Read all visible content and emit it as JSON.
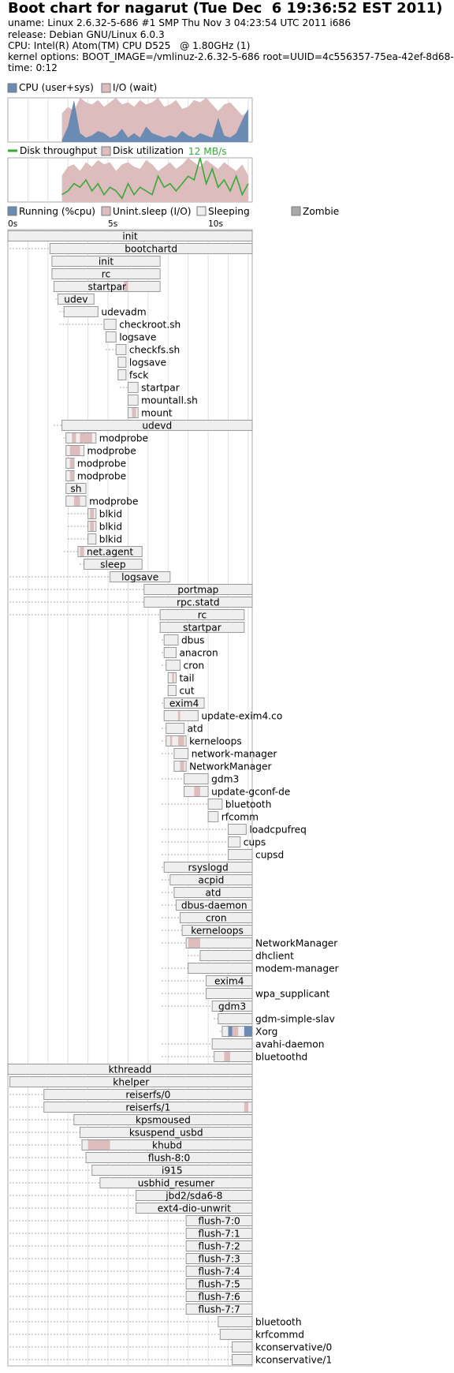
{
  "header": {
    "title": "Boot chart for nagarut (Tue Dec  6 19:36:52 EST 2011)",
    "uname": "uname: Linux 2.6.32-5-686 #1 SMP Thu Nov 3 04:23:54 UTC 2011 i686",
    "release": "release: Debian GNU/Linux 6.0.3",
    "cpu": "CPU: Intel(R) Atom(TM) CPU D525   @ 1.80GHz (1)",
    "kernel_options": "kernel options: BOOT_IMAGE=/vmlinuz-2.6.32-5-686 root=UUID=4c556357-75ea-42ef-8d68-",
    "time": "time: 0:12"
  },
  "colors": {
    "cpu": "#6b8bb3",
    "io": "#dcbcbc",
    "throughput": "#3aa83a",
    "running": "#6b8bb3",
    "uninterruptible": "#dcbcbc",
    "sleeping": "#efefef",
    "zombie": "#a8a8a8",
    "box_border": "#999999",
    "grid": "#e0e0e0"
  },
  "chart_data": [
    {
      "type": "area",
      "legend": [
        "CPU (user+sys)",
        "I/O (wait)"
      ],
      "x": [
        2.7,
        3.0,
        3.3,
        3.6,
        3.9,
        4.2,
        4.5,
        4.8,
        5.1,
        5.4,
        5.7,
        6.0,
        6.3,
        6.6,
        6.9,
        7.2,
        7.5,
        7.8,
        8.1,
        8.4,
        8.7,
        9.0,
        9.3,
        9.6,
        9.9,
        10.2,
        10.5,
        10.8,
        11.1,
        11.4,
        11.7,
        12.0
      ],
      "series": [
        {
          "name": "CPU (user+sys)",
          "values": [
            5,
            35,
            95,
            20,
            10,
            15,
            25,
            20,
            10,
            15,
            30,
            10,
            20,
            10,
            35,
            20,
            15,
            10,
            15,
            10,
            25,
            15,
            10,
            20,
            15,
            10,
            55,
            15,
            10,
            20,
            50,
            75
          ]
        },
        {
          "name": "I/O (wait)",
          "values": [
            65,
            80,
            70,
            100,
            90,
            85,
            95,
            80,
            90,
            100,
            85,
            90,
            80,
            95,
            85,
            90,
            100,
            80,
            85,
            95,
            75,
            80,
            95,
            90,
            100,
            85,
            70,
            85,
            90,
            75,
            60,
            70
          ]
        }
      ],
      "xlim": [
        0,
        12.2
      ],
      "ylim": [
        0,
        100
      ]
    },
    {
      "type": "area",
      "legend": [
        "Disk throughput",
        "Disk utilization"
      ],
      "annotation": "12 MB/s",
      "x": [
        2.7,
        3.0,
        3.3,
        3.6,
        3.9,
        4.2,
        4.5,
        4.8,
        5.1,
        5.4,
        5.7,
        6.0,
        6.3,
        6.6,
        6.9,
        7.2,
        7.5,
        7.8,
        8.1,
        8.4,
        8.7,
        9.0,
        9.3,
        9.6,
        9.9,
        10.2,
        10.5,
        10.8,
        11.1,
        11.4,
        11.7,
        12.0
      ],
      "series": [
        {
          "name": "Disk utilization",
          "values": [
            60,
            80,
            85,
            70,
            90,
            80,
            95,
            85,
            90,
            70,
            85,
            90,
            80,
            75,
            95,
            85,
            70,
            80,
            90,
            75,
            85,
            100,
            90,
            80,
            95,
            85,
            75,
            90,
            80,
            70,
            85,
            60
          ]
        },
        {
          "name": "Disk throughput",
          "values": [
            2,
            3,
            5,
            4,
            6,
            3,
            5,
            2,
            4,
            3,
            1,
            5,
            2,
            4,
            3,
            2,
            7,
            4,
            5,
            3,
            5,
            7,
            6,
            12,
            5,
            9,
            4,
            6,
            3,
            7,
            2,
            5
          ]
        }
      ],
      "xlim": [
        0,
        12.2
      ],
      "ylim": [
        0,
        12
      ]
    },
    {
      "type": "timeline",
      "legend": [
        "Running (%cpu)",
        "Unint.sleep (I/O)",
        "Sleeping",
        "Zombie"
      ],
      "ticks": [
        "0s",
        "5s",
        "10s"
      ],
      "xlim": [
        0,
        12.2
      ],
      "processes": [
        {
          "name": "init",
          "start": 0.0,
          "end": 12.2,
          "depth": 0
        },
        {
          "name": "bootchartd",
          "start": 2.1,
          "end": 12.2,
          "depth": 1
        },
        {
          "name": "init",
          "start": 2.2,
          "end": 7.6,
          "depth": 2
        },
        {
          "name": "rc",
          "start": 2.2,
          "end": 7.6,
          "depth": 3
        },
        {
          "name": "startpar",
          "start": 2.3,
          "end": 7.6,
          "depth": 4,
          "io": [
            [
              5.8,
              6.0
            ]
          ]
        },
        {
          "name": "udev",
          "start": 2.5,
          "end": 4.3,
          "depth": 5
        },
        {
          "name": "udevadm",
          "start": 2.8,
          "end": 4.5,
          "depth": 6
        },
        {
          "name": "checkroot.sh",
          "start": 4.8,
          "end": 5.4,
          "depth": 6
        },
        {
          "name": "logsave",
          "start": 4.9,
          "end": 5.4,
          "depth": 7
        },
        {
          "name": "checkfs.sh",
          "start": 5.4,
          "end": 5.9,
          "depth": 7
        },
        {
          "name": "logsave",
          "start": 5.5,
          "end": 5.9,
          "depth": 8
        },
        {
          "name": "fsck",
          "start": 5.5,
          "end": 5.9,
          "depth": 9
        },
        {
          "name": "startpar",
          "start": 6.0,
          "end": 6.5,
          "depth": 9
        },
        {
          "name": "mountall.sh",
          "start": 6.0,
          "end": 6.5,
          "depth": 10
        },
        {
          "name": "mount",
          "start": 6.0,
          "end": 6.5,
          "depth": 11,
          "io": [
            [
              6.2,
              6.4
            ]
          ]
        },
        {
          "name": "udevd",
          "start": 2.7,
          "end": 12.2,
          "depth": 3
        },
        {
          "name": "modprobe",
          "start": 2.9,
          "end": 4.4,
          "depth": 4,
          "io": [
            [
              3.2,
              3.4
            ],
            [
              3.6,
              4.2
            ]
          ]
        },
        {
          "name": "modprobe",
          "start": 2.9,
          "end": 3.8,
          "depth": 5,
          "io": [
            [
              3.1,
              3.6
            ]
          ]
        },
        {
          "name": "modprobe",
          "start": 2.9,
          "end": 3.3,
          "depth": 5,
          "io": [
            [
              3.1,
              3.3
            ]
          ]
        },
        {
          "name": "modprobe",
          "start": 2.9,
          "end": 3.3,
          "depth": 5,
          "io": [
            [
              3.1,
              3.3
            ]
          ]
        },
        {
          "name": "sh",
          "start": 2.9,
          "end": 3.9,
          "depth": 5
        },
        {
          "name": "modprobe",
          "start": 2.9,
          "end": 3.9,
          "depth": 5,
          "io": [
            [
              3.3,
              3.6
            ]
          ]
        },
        {
          "name": "blkid",
          "start": 4.0,
          "end": 4.4,
          "depth": 6,
          "io": [
            [
              4.1,
              4.3
            ]
          ]
        },
        {
          "name": "blkid",
          "start": 4.0,
          "end": 4.4,
          "depth": 6,
          "io": [
            [
              4.1,
              4.3
            ]
          ]
        },
        {
          "name": "blkid",
          "start": 4.0,
          "end": 4.4,
          "depth": 6
        },
        {
          "name": "net.agent",
          "start": 3.5,
          "end": 6.7,
          "depth": 4,
          "io": [
            [
              3.6,
              3.8
            ]
          ]
        },
        {
          "name": "sleep",
          "start": 3.8,
          "end": 6.7,
          "depth": 5
        },
        {
          "name": "logsave",
          "start": 5.1,
          "end": 8.1,
          "depth": 1
        },
        {
          "name": "portmap",
          "start": 6.8,
          "end": 12.2,
          "depth": 1
        },
        {
          "name": "rpc.statd",
          "start": 6.8,
          "end": 12.2,
          "depth": 1
        },
        {
          "name": "rc",
          "start": 7.6,
          "end": 11.8,
          "depth": 1
        },
        {
          "name": "startpar",
          "start": 7.6,
          "end": 11.8,
          "depth": 2
        },
        {
          "name": "dbus",
          "start": 7.8,
          "end": 8.5,
          "depth": 3
        },
        {
          "name": "anacron",
          "start": 7.8,
          "end": 8.4,
          "depth": 3
        },
        {
          "name": "cron",
          "start": 7.9,
          "end": 8.6,
          "depth": 3
        },
        {
          "name": "tail",
          "start": 8.0,
          "end": 8.4,
          "depth": 4,
          "io": [
            [
              8.2,
              8.3
            ]
          ]
        },
        {
          "name": "cut",
          "start": 8.0,
          "end": 8.4,
          "depth": 4
        },
        {
          "name": "exim4",
          "start": 7.8,
          "end": 9.8,
          "depth": 3
        },
        {
          "name": "update-exim4.co",
          "start": 7.8,
          "end": 9.5,
          "depth": 4,
          "io": [
            [
              8.5,
              8.6
            ]
          ]
        },
        {
          "name": "atd",
          "start": 7.9,
          "end": 8.8,
          "depth": 3
        },
        {
          "name": "kerneloops",
          "start": 7.9,
          "end": 8.9,
          "depth": 3,
          "io": [
            [
              8.1,
              8.2
            ],
            [
              8.5,
              8.8
            ]
          ]
        },
        {
          "name": "network-manager",
          "start": 8.3,
          "end": 9.0,
          "depth": 3
        },
        {
          "name": "NetworkManager",
          "start": 8.3,
          "end": 8.9,
          "depth": 4,
          "io": [
            [
              8.6,
              8.8
            ]
          ]
        },
        {
          "name": "gdm3",
          "start": 8.8,
          "end": 10.0,
          "depth": 3
        },
        {
          "name": "update-gconf-de",
          "start": 8.8,
          "end": 10.0,
          "depth": 4,
          "io": [
            [
              9.3,
              9.6
            ]
          ]
        },
        {
          "name": "bluetooth",
          "start": 10.0,
          "end": 10.7,
          "depth": 3
        },
        {
          "name": "rfcomm",
          "start": 10.0,
          "end": 10.5,
          "depth": 4
        },
        {
          "name": "loadcpufreq",
          "start": 11.0,
          "end": 11.9,
          "depth": 3
        },
        {
          "name": "cups",
          "start": 11.0,
          "end": 11.6,
          "depth": 3
        },
        {
          "name": "cupsd",
          "start": 11.0,
          "end": 12.2,
          "depth": 3
        },
        {
          "name": "rsyslogd",
          "start": 7.8,
          "end": 12.2,
          "depth": 3
        },
        {
          "name": "acpid",
          "start": 8.1,
          "end": 12.2,
          "depth": 3
        },
        {
          "name": "atd",
          "start": 8.3,
          "end": 12.2,
          "depth": 3
        },
        {
          "name": "dbus-daemon",
          "start": 8.4,
          "end": 12.2,
          "depth": 3
        },
        {
          "name": "cron",
          "start": 8.6,
          "end": 12.2,
          "depth": 3
        },
        {
          "name": "kerneloops",
          "start": 8.7,
          "end": 12.2,
          "depth": 3
        },
        {
          "name": "NetworkManager",
          "start": 8.9,
          "end": 12.2,
          "depth": 3,
          "io": [
            [
              9.0,
              9.6
            ]
          ]
        },
        {
          "name": "dhclient",
          "start": 9.6,
          "end": 12.2,
          "depth": 4
        },
        {
          "name": "modem-manager",
          "start": 9.0,
          "end": 12.2,
          "depth": 3
        },
        {
          "name": "exim4",
          "start": 9.9,
          "end": 12.2,
          "depth": 3
        },
        {
          "name": "wpa_supplicant",
          "start": 9.9,
          "end": 12.2,
          "depth": 3
        },
        {
          "name": "gdm3",
          "start": 10.2,
          "end": 12.2,
          "depth": 3
        },
        {
          "name": "gdm-simple-slav",
          "start": 10.5,
          "end": 12.2,
          "depth": 4
        },
        {
          "name": "Xorg",
          "start": 10.7,
          "end": 12.2,
          "depth": 5,
          "cpu": [
            [
              11.0,
              11.2
            ],
            [
              11.8,
              12.2
            ]
          ],
          "io": [
            [
              11.2,
              11.5
            ]
          ]
        },
        {
          "name": "avahi-daemon",
          "start": 10.2,
          "end": 12.2,
          "depth": 3
        },
        {
          "name": "bluetoothd",
          "start": 10.3,
          "end": 12.2,
          "depth": 3,
          "io": [
            [
              10.8,
              11.1
            ]
          ]
        },
        {
          "name": "kthreadd",
          "start": 0.0,
          "end": 12.2,
          "depth": 0
        },
        {
          "name": "khelper",
          "start": 0.1,
          "end": 12.2,
          "depth": 1
        },
        {
          "name": "reiserfs/0",
          "start": 1.8,
          "end": 12.2,
          "depth": 1
        },
        {
          "name": "reiserfs/1",
          "start": 1.8,
          "end": 12.2,
          "depth": 1,
          "io": [
            [
              11.8,
              12.0
            ]
          ]
        },
        {
          "name": "kpsmoused",
          "start": 3.3,
          "end": 12.2,
          "depth": 1
        },
        {
          "name": "ksuspend_usbd",
          "start": 3.6,
          "end": 12.2,
          "depth": 1
        },
        {
          "name": "khubd",
          "start": 3.7,
          "end": 12.2,
          "depth": 1,
          "io": [
            [
              4.0,
              5.1
            ]
          ]
        },
        {
          "name": "flush-8:0",
          "start": 3.9,
          "end": 12.2,
          "depth": 1
        },
        {
          "name": "i915",
          "start": 4.2,
          "end": 12.2,
          "depth": 1
        },
        {
          "name": "usbhid_resumer",
          "start": 4.6,
          "end": 12.2,
          "depth": 1
        },
        {
          "name": "jbd2/sda6-8",
          "start": 6.4,
          "end": 12.2,
          "depth": 1
        },
        {
          "name": "ext4-dio-unwrit",
          "start": 6.4,
          "end": 12.2,
          "depth": 1
        },
        {
          "name": "flush-7:0",
          "start": 8.9,
          "end": 12.2,
          "depth": 1
        },
        {
          "name": "flush-7:1",
          "start": 8.9,
          "end": 12.2,
          "depth": 1
        },
        {
          "name": "flush-7:2",
          "start": 8.9,
          "end": 12.2,
          "depth": 1
        },
        {
          "name": "flush-7:3",
          "start": 8.9,
          "end": 12.2,
          "depth": 1
        },
        {
          "name": "flush-7:4",
          "start": 8.9,
          "end": 12.2,
          "depth": 1
        },
        {
          "name": "flush-7:5",
          "start": 8.9,
          "end": 12.2,
          "depth": 1
        },
        {
          "name": "flush-7:6",
          "start": 8.9,
          "end": 12.2,
          "depth": 1
        },
        {
          "name": "flush-7:7",
          "start": 8.9,
          "end": 12.2,
          "depth": 1
        },
        {
          "name": "bluetooth",
          "start": 10.5,
          "end": 12.2,
          "depth": 1
        },
        {
          "name": "krfcommd",
          "start": 10.6,
          "end": 12.2,
          "depth": 1
        },
        {
          "name": "kconservative/0",
          "start": 11.2,
          "end": 12.2,
          "depth": 1
        },
        {
          "name": "kconservative/1",
          "start": 11.2,
          "end": 12.2,
          "depth": 1
        }
      ]
    }
  ]
}
